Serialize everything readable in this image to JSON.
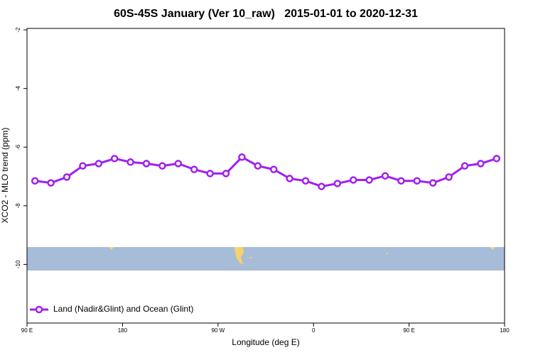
{
  "chart_data": {
    "type": "line",
    "title": "60S-45S January (Ver 10_raw)   2015-01-01 to 2020-12-31",
    "xlabel": "Longitude (deg E)",
    "ylabel": "XCO2 - MLO trend (ppm)",
    "x": [
      97.5,
      112.5,
      127.5,
      142.5,
      157.5,
      172.5,
      187.5,
      202.5,
      217.5,
      232.5,
      247.5,
      262.5,
      277.5,
      292.5,
      307.5,
      322.5,
      337.5,
      352.5,
      367.5,
      382.5,
      397.5,
      412.5,
      427.5,
      442.5,
      457.5,
      472.5,
      487.5,
      502.5,
      517.5,
      532.5
    ],
    "series": [
      {
        "name": "Land (Nadir&Glint) and Ocean (Glint)",
        "color": "#a020f0",
        "values": [
          -7.15,
          -7.22,
          -7.02,
          -6.64,
          -6.56,
          -6.39,
          -6.51,
          -6.56,
          -6.64,
          -6.56,
          -6.76,
          -6.9,
          -6.9,
          -6.34,
          -6.64,
          -6.76,
          -7.07,
          -7.15,
          -7.34,
          -7.24,
          -7.12,
          -7.12,
          -6.98,
          -7.15,
          -7.15,
          -7.22,
          -7.02,
          -6.64,
          -6.56,
          -6.39
        ]
      }
    ],
    "xlim": [
      90,
      540
    ],
    "xticks": [
      {
        "value": 90,
        "label": "90 E"
      },
      {
        "value": 180,
        "label": "180"
      },
      {
        "value": 270,
        "label": "90 W"
      },
      {
        "value": 360,
        "label": "0"
      },
      {
        "value": 450,
        "label": "90 E"
      },
      {
        "value": 540,
        "label": "180"
      }
    ],
    "ylim": [
      -12,
      -1.95
    ],
    "yticks": [
      -2,
      -4,
      -6,
      -8,
      -10
    ],
    "legend": "lower left"
  }
}
